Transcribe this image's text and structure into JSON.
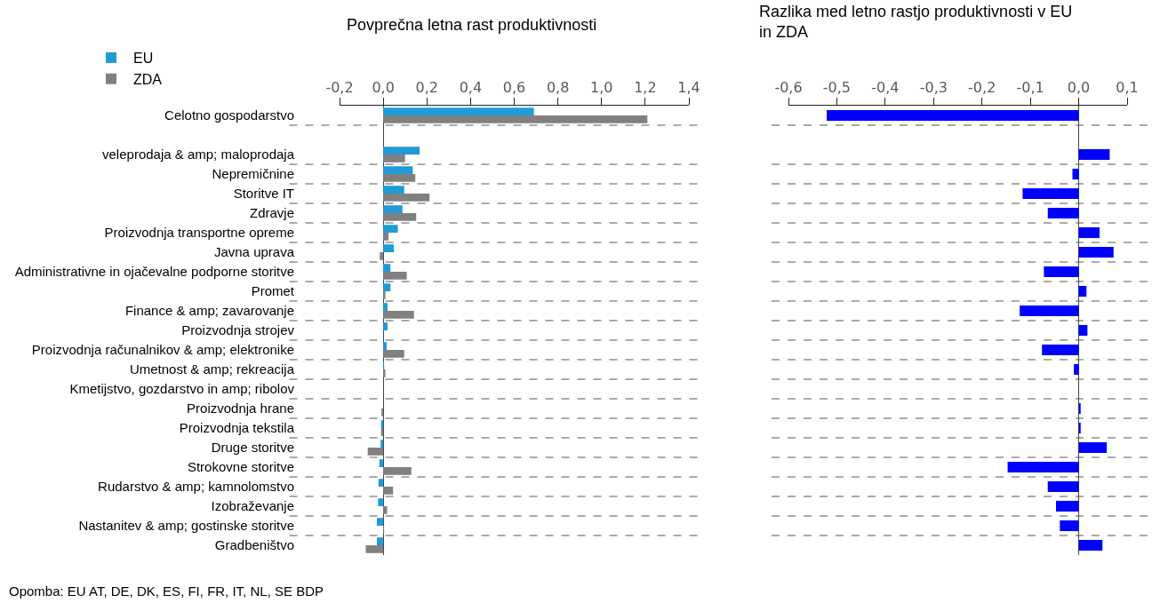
{
  "chart_data": [
    {
      "type": "bar",
      "orientation": "horizontal",
      "title": "Povprečna letna rast produktivnosti",
      "categories": [
        "Celotno gospodarstvo",
        null,
        "veleprodaja & amp; maloprodaja",
        "Nepremičnine",
        "Storitve IT",
        "Zdravje",
        "Proizvodnja transportne opreme",
        "Javna uprava",
        "Administrativne in ojačevalne podporne storitve",
        "Promet",
        "Finance & amp; zavarovanje",
        "Proizvodnja strojev",
        "Proizvodnja računalnikov & amp; elektronike",
        "Umetnost & amp; rekreacija",
        "Kmetijstvo, gozdarstvo in amp; ribolov",
        "Proizvodnja hrane",
        "Proizvodnja tekstila",
        "Druge storitve",
        "Strokovne storitve",
        "Rudarstvo & amp; kamnolomstvo",
        "Izobraževanje",
        "Nastanitev & amp; gostinske storitve",
        "Gradbeništvo"
      ],
      "series": [
        {
          "name": "EU",
          "color": "#1f9bd7",
          "values": [
            0.69,
            null,
            0.167,
            0.135,
            0.096,
            0.088,
            0.067,
            0.049,
            0.033,
            0.033,
            0.02,
            0.02,
            0.016,
            0.004,
            0,
            0,
            -0.01,
            -0.012,
            -0.018,
            -0.022,
            -0.024,
            -0.029,
            -0.029
          ]
        },
        {
          "name": "ZDA",
          "color": "#808080",
          "values": [
            1.21,
            null,
            0.1,
            0.147,
            0.212,
            0.151,
            0.024,
            -0.016,
            0.108,
            0.01,
            0.141,
            0,
            0.096,
            0.01,
            0,
            -0.008,
            -0.01,
            -0.071,
            0.129,
            0.045,
            0.018,
            0.004,
            -0.08
          ]
        }
      ],
      "xlim": [
        -0.2,
        1.4
      ],
      "xticks": [
        {
          "value": -0.2,
          "label": "-0,2"
        },
        {
          "value": 0,
          "label": "0,0"
        },
        {
          "value": 0.2,
          "label": "0,2"
        },
        {
          "value": 0.4,
          "label": "0,4"
        },
        {
          "value": 0.6,
          "label": "0,6"
        },
        {
          "value": 0.8,
          "label": "0,8"
        },
        {
          "value": 1,
          "label": "1,0"
        },
        {
          "value": 1.2,
          "label": "1,2"
        },
        {
          "value": 1.4,
          "label": "1,4"
        }
      ],
      "grid": "y",
      "legend": "top left",
      "annotations": [
        "Opomba: EU AT, DE, DK, ES, FI, FR, IT, NL, SE BDP"
      ]
    },
    {
      "type": "bar",
      "orientation": "horizontal",
      "title": "Razlika med letno rastjo produktivnosti v EU in ZDA",
      "categories": [
        null,
        null,
        null,
        null,
        null,
        null,
        null,
        null,
        null,
        null,
        null,
        null,
        null,
        null,
        null,
        null,
        null,
        null,
        null,
        null,
        null,
        null,
        null
      ],
      "series": [
        {
          "color": "#0000ff",
          "values": [
            -0.521,
            null,
            0.064,
            -0.013,
            -0.116,
            -0.064,
            0.043,
            0.072,
            -0.072,
            0.016,
            -0.122,
            0.018,
            -0.076,
            -0.01,
            0,
            0.004,
            0.004,
            0.058,
            -0.147,
            -0.064,
            -0.047,
            -0.039,
            0.049
          ]
        }
      ],
      "xlim": [
        -0.6,
        0.1
      ],
      "xticks": [
        {
          "value": -0.6,
          "label": "-0,6"
        },
        {
          "value": -0.5,
          "label": "-0,5"
        },
        {
          "value": -0.4,
          "label": "-0,4"
        },
        {
          "value": -0.3,
          "label": "-0,3"
        },
        {
          "value": -0.2,
          "label": "-0,2"
        },
        {
          "value": -0.1,
          "label": "-0,1"
        },
        {
          "value": 0,
          "label": "0,0"
        },
        {
          "value": 0.1,
          "label": "0,1"
        }
      ],
      "grid": "y",
      "legend": false,
      "tick_labels": "x"
    }
  ]
}
